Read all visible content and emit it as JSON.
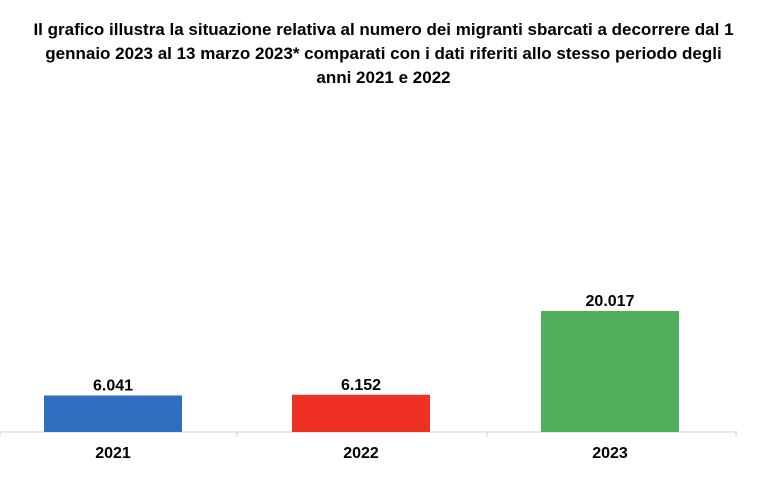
{
  "chart_data": {
    "type": "bar",
    "title_lines": [
      "Il grafico illustra la situazione relativa al numero dei migranti sbarcati a decorrere dal 1",
      "gennaio 2023 al 13 marzo 2023* comparati con i dati riferiti allo stesso periodo degli",
      "anni 2021 e 2022"
    ],
    "categories": [
      "2021",
      "2022",
      "2023"
    ],
    "values": [
      6041,
      6152,
      20017
    ],
    "value_labels": [
      "6.041",
      "6.152",
      "20.017"
    ],
    "colors": [
      "#2e6fbf",
      "#ee3124",
      "#4faf5a"
    ],
    "xlabel": "",
    "ylabel": "",
    "ylim": [
      0,
      20017
    ],
    "grid": false,
    "legend": "none"
  }
}
